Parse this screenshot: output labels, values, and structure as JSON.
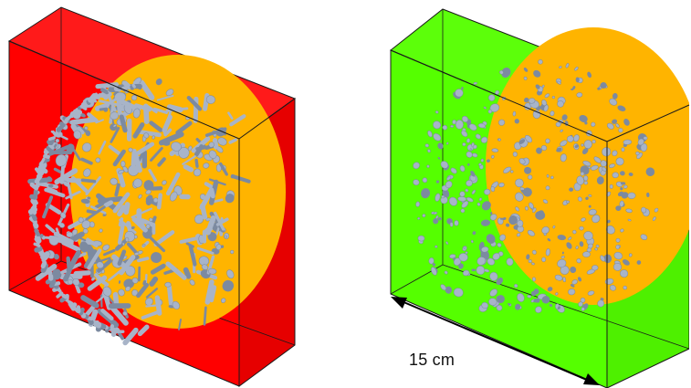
{
  "image": {
    "description_free": true,
    "colors": {
      "left_box": "#ff0000",
      "right_box": "#55ff00",
      "disk": "#ffb400",
      "particles": "#a8b4c8",
      "particles_shadow": "#7c8aa0",
      "edges": "#1a1a1a",
      "arrow": "#000000"
    }
  },
  "scale_bar": {
    "label": "15 cm",
    "icon": "double-arrow-icon"
  }
}
